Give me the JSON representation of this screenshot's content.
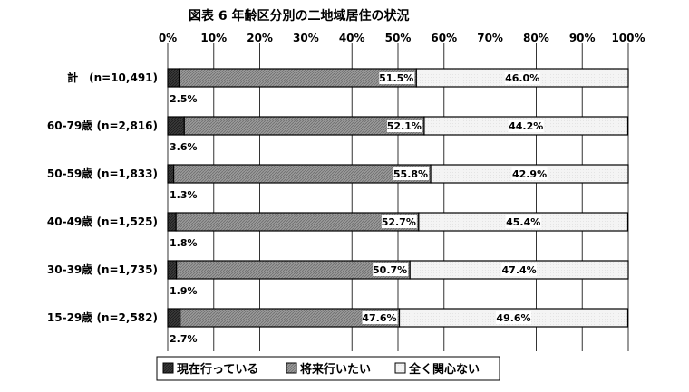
{
  "chart_data": {
    "type": "bar",
    "stacked": true,
    "orientation": "horizontal",
    "title": "図表 6 年齢区分別の二地域居住の状況",
    "x_ticks": [
      "0%",
      "10%",
      "20%",
      "30%",
      "40%",
      "50%",
      "60%",
      "70%",
      "80%",
      "90%",
      "100%"
    ],
    "xlim": [
      0,
      100
    ],
    "grid": true,
    "legend_position": "bottom",
    "categories": [
      "計　(n=10,491)",
      "60-79歳 (n=2,816)",
      "50-59歳 (n=1,833)",
      "40-49歳 (n=1,525)",
      "30-39歳 (n=1,735)",
      "15-29歳 (n=2,582)"
    ],
    "series": [
      {
        "name": "現在行っている",
        "values": [
          2.5,
          3.6,
          1.3,
          1.8,
          1.9,
          2.7
        ],
        "labels": [
          "2.5%",
          "3.6%",
          "1.3%",
          "1.8%",
          "1.9%",
          "2.7%"
        ],
        "color": "#3a3a3a"
      },
      {
        "name": "将来行いたい",
        "values": [
          51.5,
          52.1,
          55.8,
          52.7,
          50.7,
          47.6
        ],
        "labels": [
          "51.5%",
          "52.1%",
          "55.8%",
          "52.7%",
          "50.7%",
          "47.6%"
        ],
        "color": "#9a9a9a"
      },
      {
        "name": "全く関心ない",
        "values": [
          46.0,
          44.2,
          42.9,
          45.4,
          47.4,
          49.6
        ],
        "labels": [
          "46.0%",
          "44.2%",
          "42.9%",
          "45.4%",
          "47.4%",
          "49.6%"
        ],
        "color": "#f4f4f4"
      }
    ]
  }
}
